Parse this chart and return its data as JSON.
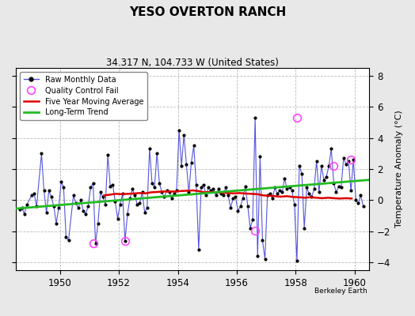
{
  "title": "YESO OVERTON RANCH",
  "subtitle": "34.317 N, 104.733 W (United States)",
  "ylabel": "Temperature Anomaly (°C)",
  "attribution": "Berkeley Earth",
  "xlim": [
    1948.5,
    1960.5
  ],
  "ylim": [
    -4.5,
    8.5
  ],
  "yticks": [
    -4,
    -2,
    0,
    2,
    4,
    6,
    8
  ],
  "xticks": [
    1950,
    1952,
    1954,
    1956,
    1958,
    1960
  ],
  "bg_color": "#e8e8e8",
  "plot_bg": "#ffffff",
  "raw_x": [
    1948.625,
    1948.708,
    1948.792,
    1948.875,
    1949.042,
    1949.125,
    1949.208,
    1949.375,
    1949.458,
    1949.542,
    1949.625,
    1949.708,
    1949.792,
    1949.875,
    1949.958,
    1950.042,
    1950.125,
    1950.208,
    1950.292,
    1950.458,
    1950.542,
    1950.625,
    1950.708,
    1950.792,
    1950.875,
    1950.958,
    1951.042,
    1951.125,
    1951.208,
    1951.292,
    1951.375,
    1951.458,
    1951.542,
    1951.625,
    1951.708,
    1951.792,
    1951.875,
    1951.958,
    1952.042,
    1952.125,
    1952.208,
    1952.292,
    1952.375,
    1952.458,
    1952.542,
    1952.625,
    1952.708,
    1952.792,
    1952.875,
    1952.958,
    1953.042,
    1953.125,
    1953.208,
    1953.292,
    1953.375,
    1953.458,
    1953.542,
    1953.625,
    1953.708,
    1953.792,
    1953.875,
    1953.958,
    1954.042,
    1954.125,
    1954.208,
    1954.292,
    1954.375,
    1954.458,
    1954.542,
    1954.625,
    1954.708,
    1954.792,
    1954.875,
    1954.958,
    1955.042,
    1955.125,
    1955.208,
    1955.292,
    1955.375,
    1955.458,
    1955.542,
    1955.625,
    1955.708,
    1955.792,
    1955.875,
    1955.958,
    1956.042,
    1956.125,
    1956.208,
    1956.292,
    1956.375,
    1956.458,
    1956.542,
    1956.625,
    1956.708,
    1956.792,
    1956.875,
    1956.958,
    1957.042,
    1957.125,
    1957.208,
    1957.292,
    1957.375,
    1957.458,
    1957.542,
    1957.625,
    1957.708,
    1957.792,
    1957.875,
    1957.958,
    1958.042,
    1958.125,
    1958.208,
    1958.292,
    1958.375,
    1958.458,
    1958.542,
    1958.625,
    1958.708,
    1958.792,
    1958.875,
    1958.958,
    1959.042,
    1959.125,
    1959.208,
    1959.292,
    1959.375,
    1959.458,
    1959.542,
    1959.625,
    1959.708,
    1959.792,
    1959.875,
    1959.958,
    1960.042,
    1960.125,
    1960.208,
    1960.292
  ],
  "raw_y": [
    -0.6,
    -0.5,
    -0.9,
    -0.3,
    0.3,
    0.4,
    -0.4,
    3.0,
    0.6,
    -0.8,
    0.6,
    0.2,
    -0.4,
    -1.5,
    -0.5,
    1.2,
    0.8,
    -2.4,
    -2.6,
    0.3,
    -0.2,
    -0.5,
    0.0,
    -0.7,
    -0.9,
    -0.4,
    0.8,
    1.1,
    -2.8,
    -1.5,
    0.5,
    0.2,
    -0.3,
    2.9,
    0.9,
    1.0,
    -0.1,
    -1.2,
    -0.3,
    0.4,
    -2.65,
    -0.9,
    0.1,
    0.7,
    0.3,
    -0.3,
    -0.2,
    0.5,
    -0.8,
    -0.5,
    3.3,
    1.1,
    0.8,
    3.0,
    1.1,
    0.5,
    0.2,
    0.6,
    0.5,
    0.1,
    0.4,
    0.6,
    4.5,
    2.2,
    4.2,
    2.3,
    0.5,
    2.4,
    3.5,
    1.0,
    -3.2,
    0.8,
    1.0,
    0.3,
    0.8,
    0.6,
    0.7,
    0.3,
    0.7,
    0.4,
    0.3,
    0.8,
    0.3,
    -0.5,
    0.1,
    0.2,
    -0.7,
    -0.4,
    0.1,
    0.9,
    -0.4,
    -1.8,
    -1.25,
    5.3,
    -3.6,
    2.8,
    -2.6,
    -3.8,
    0.3,
    0.4,
    0.1,
    0.8,
    0.4,
    0.6,
    0.5,
    1.4,
    0.7,
    0.8,
    0.6,
    -0.3,
    -3.9,
    2.2,
    1.7,
    -1.8,
    0.8,
    0.4,
    0.2,
    0.7,
    2.5,
    0.5,
    2.2,
    1.3,
    1.5,
    2.2,
    3.3,
    1.1,
    0.5,
    0.9,
    0.8,
    2.7,
    2.3,
    2.5,
    0.6,
    2.6,
    0.0,
    -0.2,
    0.3,
    -0.4
  ],
  "qc_fail_x": [
    1951.125,
    1952.208,
    1956.625,
    1958.042,
    1959.292,
    1959.875
  ],
  "qc_fail_y": [
    -2.8,
    -2.65,
    -1.95,
    5.3,
    2.2,
    2.6
  ],
  "moving_avg_x": [
    1951.5,
    1951.7,
    1951.9,
    1952.1,
    1952.3,
    1952.5,
    1952.7,
    1952.9,
    1953.1,
    1953.3,
    1953.5,
    1953.7,
    1953.9,
    1954.1,
    1954.3,
    1954.5,
    1954.7,
    1954.9,
    1955.1,
    1955.3,
    1955.5,
    1955.7,
    1955.9,
    1956.1,
    1956.3,
    1956.5,
    1956.7,
    1956.9,
    1957.1,
    1957.3,
    1957.5,
    1957.7,
    1957.9,
    1958.1,
    1958.3,
    1958.5,
    1958.7,
    1958.9,
    1959.1,
    1959.3,
    1959.5,
    1959.7,
    1959.9
  ],
  "moving_avg_y": [
    0.3,
    0.35,
    0.4,
    0.38,
    0.4,
    0.42,
    0.45,
    0.43,
    0.5,
    0.52,
    0.55,
    0.55,
    0.55,
    0.58,
    0.6,
    0.62,
    0.58,
    0.5,
    0.52,
    0.5,
    0.48,
    0.45,
    0.43,
    0.45,
    0.42,
    0.4,
    0.38,
    0.3,
    0.28,
    0.25,
    0.22,
    0.25,
    0.2,
    0.18,
    0.15,
    0.18,
    0.15,
    0.12,
    0.15,
    0.12,
    0.1,
    0.12,
    0.1
  ],
  "trend_x": [
    1948.5,
    1960.5
  ],
  "trend_y": [
    -0.55,
    1.3
  ],
  "line_color": "#5555dd",
  "dot_color": "#000000",
  "moving_avg_color": "#dd0000",
  "trend_color": "#22bb22",
  "qc_color": "#ff44ff"
}
